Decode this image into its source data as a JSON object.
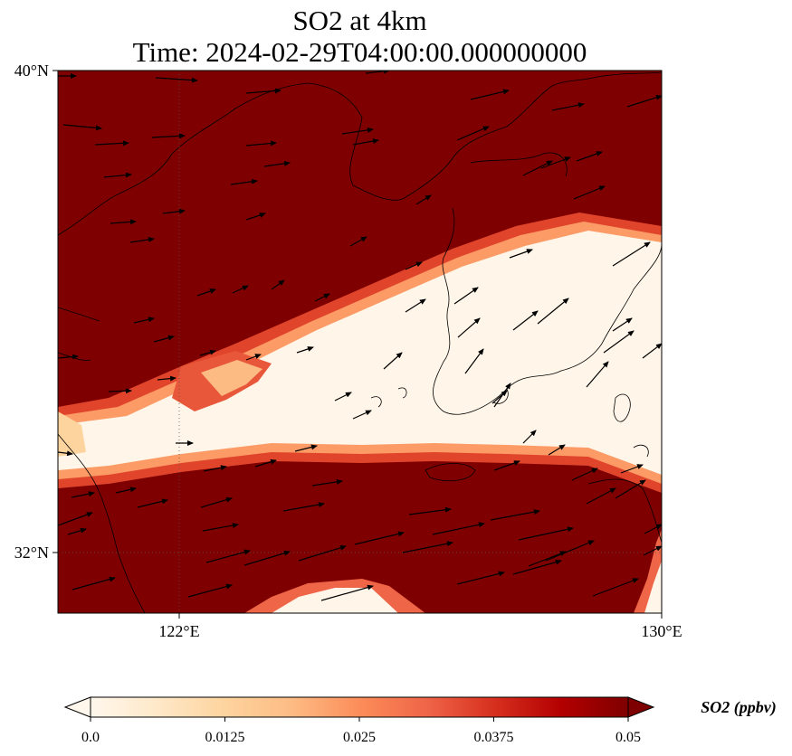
{
  "title": {
    "line1": "SO2 at 4km",
    "line2": "Time: 2024-02-29T04:00:00.000000000"
  },
  "axes": {
    "lat_labels": [
      "40°N",
      "32°N"
    ],
    "lon_labels": [
      "122°E",
      "130°E"
    ],
    "lon_range": [
      120.4,
      130.0
    ],
    "lat_range": [
      31.0,
      40.0
    ],
    "gridlines": "dotted"
  },
  "colorbar": {
    "label": "SO2 (ppbv)",
    "ticks": [
      "0.0",
      "0.0125",
      "0.025",
      "0.0375",
      "0.05"
    ],
    "range": [
      0.0,
      0.05
    ],
    "extend": "both",
    "colormap": "OrRd",
    "colors": [
      "#fff7ec",
      "#fee8c8",
      "#fdd49e",
      "#fdbb84",
      "#fc8d59",
      "#ef6548",
      "#d7301f",
      "#b30000",
      "#7f0000"
    ]
  },
  "field": {
    "high_color": "#7f0000",
    "low_color": "#fff5e8",
    "description_band": "low-SO2 plume extending from the west across the Yellow Sea to Korea"
  },
  "wind": {
    "arrow_color": "#000000",
    "direction": "westerly to southwesterly"
  }
}
